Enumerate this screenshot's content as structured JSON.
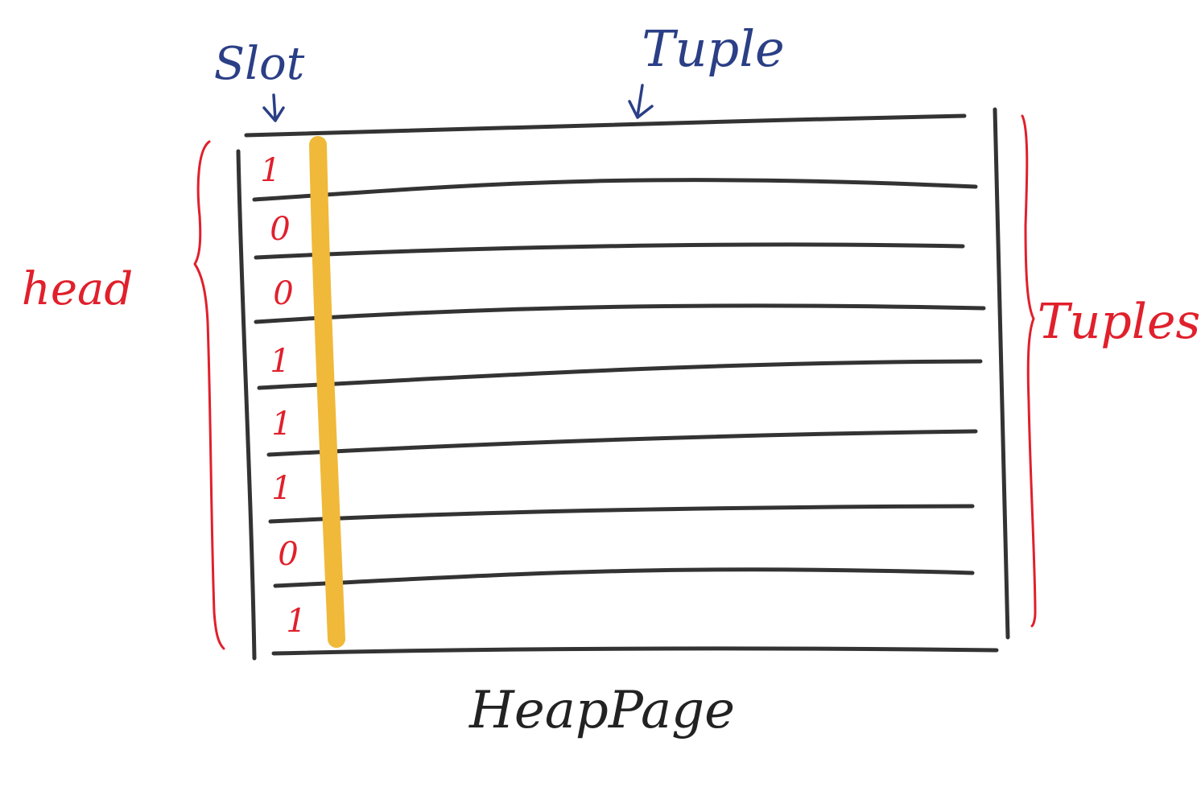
{
  "title": "HeapPage",
  "labels": {
    "slot": "Slot",
    "tuple": "Tuple",
    "head": "head",
    "tuples": "Tuples"
  },
  "slots": [
    "1",
    "0",
    "0",
    "1",
    "1",
    "1",
    "0",
    "1"
  ],
  "colors": {
    "ink": "#333333",
    "annotation_red": "#e0202c",
    "annotation_blue": "#2b3f86",
    "highlight": "#f0b93a"
  }
}
